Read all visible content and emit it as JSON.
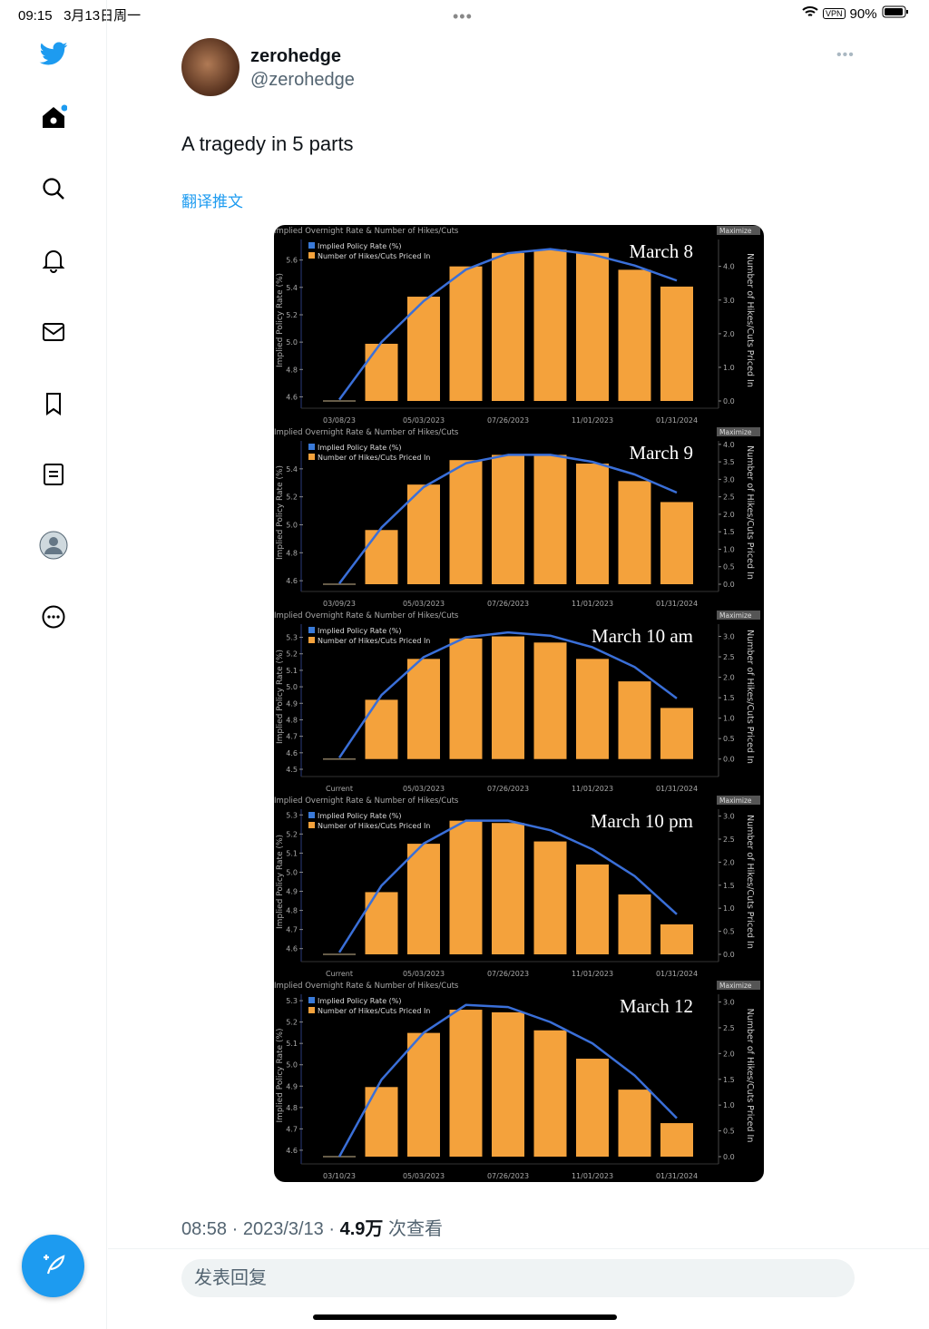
{
  "status_bar": {
    "time": "09:15",
    "date": "3月13日周一",
    "vpn": "VPN",
    "battery": "90%"
  },
  "sidebar": {
    "items": [
      {
        "icon": "twitter-bird-icon"
      },
      {
        "icon": "home-icon"
      },
      {
        "icon": "search-icon"
      },
      {
        "icon": "bell-icon"
      },
      {
        "icon": "mail-icon"
      },
      {
        "icon": "bookmark-icon"
      },
      {
        "icon": "list-icon"
      },
      {
        "icon": "profile-icon"
      },
      {
        "icon": "more-icon"
      }
    ],
    "compose_icon": "compose-tweet-icon"
  },
  "tweet": {
    "name": "zerohedge",
    "handle": "@zerohedge",
    "text": "A tragedy in 5 parts",
    "translate": "翻译推文",
    "time": "08:58 · 2023/3/13 · ",
    "views_count": "4.9万",
    "views_label": " 次查看",
    "reply_placeholder": "发表回复"
  },
  "colors": {
    "accent": "#1d9bf0",
    "bar": "#f4a23c",
    "line": "#3a6fd8"
  },
  "chart_data": [
    {
      "type": "bar",
      "title": "Implied Overnight Rate & Number of Hikes/Cuts",
      "annotation": "March 8",
      "maximize": "Maximize",
      "legend": [
        "Implied Policy Rate (%)",
        "Number of Hikes/Cuts Priced In"
      ],
      "ylabel": "Implied Policy Rate (%)",
      "y2label": "Number of Hikes/Cuts Priced In",
      "xticks": [
        "03/08/23",
        "05/03/2023",
        "07/26/2023",
        "11/01/2023",
        "01/31/2024"
      ],
      "yticks": [
        "4.6",
        "4.8",
        "5.0",
        "5.2",
        "5.4",
        "5.6"
      ],
      "y2ticks": [
        "0.0",
        "1.0",
        "2.0",
        "3.0",
        "4.0"
      ],
      "ylim": [
        4.57,
        5.75
      ],
      "y2lim": [
        0,
        4.8
      ],
      "bars": [
        1.7,
        3.1,
        4.0,
        4.4,
        4.5,
        4.4,
        3.9,
        3.4
      ],
      "rate": [
        4.58,
        5.0,
        5.3,
        5.53,
        5.65,
        5.68,
        5.64,
        5.56,
        5.45
      ]
    },
    {
      "type": "bar",
      "title": "Implied Overnight Rate & Number of Hikes/Cuts",
      "annotation": "March 9",
      "maximize": "Maximize",
      "legend": [
        "Implied Policy Rate (%)",
        "Number of Hikes/Cuts Priced In"
      ],
      "ylabel": "Implied Policy Rate (%)",
      "y2label": "Number of Hikes/Cuts Priced In",
      "xticks": [
        "03/09/23",
        "05/03/2023",
        "07/26/2023",
        "11/01/2023",
        "01/31/2024"
      ],
      "yticks": [
        "4.6",
        "4.8",
        "5.0",
        "5.2",
        "5.4"
      ],
      "y2ticks": [
        "0.0",
        "0.5",
        "1.0",
        "1.5",
        "2.0",
        "2.5",
        "3.0",
        "3.5",
        "4.0"
      ],
      "ylim": [
        4.575,
        5.6
      ],
      "y2lim": [
        0,
        4.1
      ],
      "bars": [
        1.55,
        2.85,
        3.55,
        3.7,
        3.7,
        3.45,
        2.95,
        2.35
      ],
      "rate": [
        4.58,
        4.98,
        5.27,
        5.44,
        5.5,
        5.5,
        5.45,
        5.36,
        5.23
      ]
    },
    {
      "type": "bar",
      "title": "Implied Overnight Rate & Number of Hikes/Cuts",
      "annotation": "March 10 am",
      "maximize": "Maximize",
      "legend": [
        "Implied Policy Rate (%)",
        "Number of Hikes/Cuts Priced In"
      ],
      "ylabel": "Implied Policy Rate (%)",
      "y2label": "Number of Hikes/Cuts Priced In",
      "xticks": [
        "Current",
        "05/03/2023",
        "07/26/2023",
        "11/01/2023",
        "01/31/2024"
      ],
      "yticks": [
        "4.5",
        "4.6",
        "4.7",
        "4.8",
        "4.9",
        "5.0",
        "5.1",
        "5.2",
        "5.3"
      ],
      "y2ticks": [
        "0.0",
        "0.5",
        "1.0",
        "1.5",
        "2.0",
        "2.5",
        "3.0"
      ],
      "ylim": [
        4.5,
        5.38
      ],
      "y2lim": [
        -0.25,
        3.3
      ],
      "bars": [
        1.45,
        2.45,
        2.95,
        3.0,
        2.85,
        2.45,
        1.9,
        1.25
      ],
      "rate": [
        4.57,
        4.95,
        5.18,
        5.3,
        5.33,
        5.31,
        5.24,
        5.12,
        4.93
      ]
    },
    {
      "type": "bar",
      "title": "Implied Overnight Rate & Number of Hikes/Cuts",
      "annotation": "March 10 pm",
      "maximize": "Maximize",
      "legend": [
        "Implied Policy Rate (%)",
        "Number of Hikes/Cuts Priced In"
      ],
      "ylabel": "Implied Policy Rate (%)",
      "y2label": "Number of Hikes/Cuts Priced In",
      "xticks": [
        "Current",
        "05/03/2023",
        "07/26/2023",
        "11/01/2023",
        "01/31/2024"
      ],
      "yticks": [
        "4.6",
        "4.7",
        "4.8",
        "4.9",
        "5.0",
        "5.1",
        "5.2",
        "5.3"
      ],
      "y2ticks": [
        "0.0",
        "0.5",
        "1.0",
        "1.5",
        "2.0",
        "2.5",
        "3.0"
      ],
      "ylim": [
        4.57,
        5.33
      ],
      "y2lim": [
        0,
        3.15
      ],
      "bars": [
        1.35,
        2.4,
        2.9,
        2.85,
        2.45,
        1.95,
        1.3,
        0.65
      ],
      "rate": [
        4.58,
        4.93,
        5.15,
        5.27,
        5.27,
        5.22,
        5.12,
        4.98,
        4.78
      ]
    },
    {
      "type": "bar",
      "title": "Implied Overnight Rate & Number of Hikes/Cuts",
      "annotation": "March 12",
      "maximize": "Maximize",
      "legend": [
        "Implied Policy Rate (%)",
        "Number of Hikes/Cuts Priced In"
      ],
      "ylabel": "Implied Policy Rate (%)",
      "y2label": "Number of Hikes/Cuts Priced In",
      "xticks": [
        "03/10/23",
        "05/03/2023",
        "07/26/2023",
        "11/01/2023",
        "01/31/2024"
      ],
      "yticks": [
        "4.6",
        "4.7",
        "4.8",
        "4.9",
        "5.0",
        "5.1",
        "5.2",
        "5.3"
      ],
      "y2ticks": [
        "0.0",
        "0.5",
        "1.0",
        "1.5",
        "2.0",
        "2.5",
        "3.0"
      ],
      "ylim": [
        4.57,
        5.33
      ],
      "y2lim": [
        0,
        3.15
      ],
      "bars": [
        1.35,
        2.4,
        2.85,
        2.8,
        2.45,
        1.9,
        1.3,
        0.65
      ],
      "rate": [
        4.57,
        4.93,
        5.15,
        5.28,
        5.27,
        5.2,
        5.1,
        4.95,
        4.75
      ]
    }
  ]
}
